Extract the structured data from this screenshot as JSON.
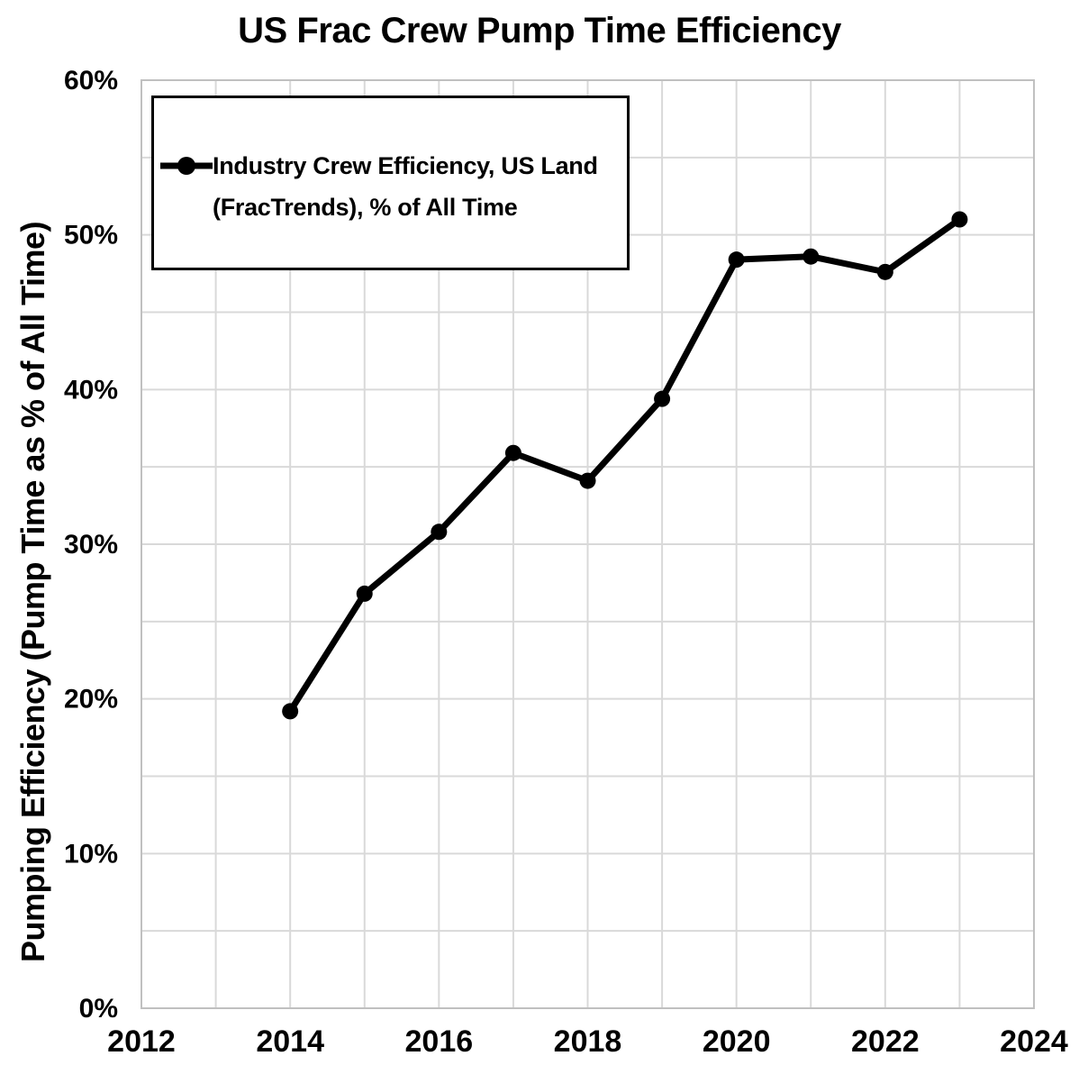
{
  "chart_data": {
    "type": "line",
    "title": "US Frac Crew Pump Time Efficiency",
    "xlabel": "",
    "ylabel": "Pumping Efficiency (Pump Time as % of All Time)",
    "xlim": [
      2012,
      2024
    ],
    "ylim": [
      0,
      60
    ],
    "x_tick_labels": [
      "2012",
      "2014",
      "2016",
      "2018",
      "2020",
      "2022",
      "2024"
    ],
    "x_tick_values": [
      2012,
      2014,
      2016,
      2018,
      2020,
      2022,
      2024
    ],
    "y_tick_labels": [
      "0%",
      "10%",
      "20%",
      "30%",
      "40%",
      "50%",
      "60%"
    ],
    "y_tick_values": [
      0,
      10,
      20,
      30,
      40,
      50,
      60
    ],
    "x_minor_grid_step": 1,
    "y_minor_grid_step": 5,
    "grid": true,
    "legend_position": "top-left-inside",
    "series": [
      {
        "name": "Industry Crew Efficiency, US Land (FracTrends), % of All Time",
        "x": [
          2014,
          2015,
          2016,
          2017,
          2018,
          2019,
          2020,
          2021,
          2022,
          2023
        ],
        "values": [
          19.2,
          26.8,
          30.8,
          35.9,
          34.1,
          39.4,
          48.4,
          48.6,
          47.6,
          51.0
        ],
        "color": "#000000",
        "marker": "circle"
      }
    ],
    "legend_lines": [
      "Industry Crew Efficiency, US Land",
      "(FracTrends), % of All Time"
    ],
    "colors": {
      "background": "#ffffff",
      "text": "#000000",
      "gridline": "#d9d9d9",
      "plot_border": "#c0c0c0",
      "series_line": "#000000",
      "legend_border": "#000000"
    }
  }
}
